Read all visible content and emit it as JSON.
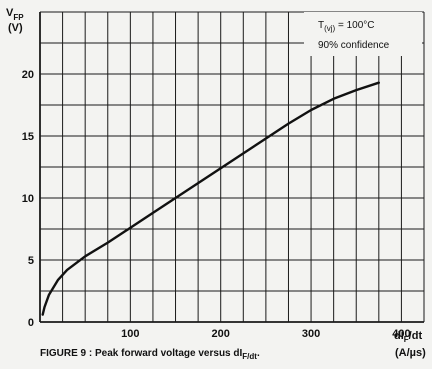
{
  "chart_data": {
    "type": "line",
    "y_label_main": "V",
    "y_label_sub": "FP",
    "y_unit": "(V)",
    "x_label_main": "dI",
    "x_label_sub": "F",
    "x_label_tail": "/dt",
    "x_unit": "(A/µs)",
    "annotation_main": "T",
    "annotation_sub": "(vj)",
    "annotation_tail": " = 100°C",
    "annotation_line2": "90% confidence",
    "caption_main": "FIGURE 9 : Peak forward voltage versus dI",
    "caption_sub": "F/dt",
    "caption_tail": ".",
    "xlim": [
      0,
      425
    ],
    "ylim": [
      0,
      25
    ],
    "x_ticks": [
      100,
      200,
      300,
      400
    ],
    "y_ticks": [
      0,
      5,
      10,
      15,
      20
    ],
    "grid": true,
    "series": [
      {
        "x": [
          3,
          5,
          10,
          20,
          30,
          50,
          75,
          100,
          125,
          150,
          175,
          200,
          225,
          250,
          275,
          300,
          325,
          350,
          375
        ],
        "y": [
          0.6,
          1.2,
          2.2,
          3.4,
          4.2,
          5.3,
          6.4,
          7.6,
          8.8,
          10.0,
          11.2,
          12.4,
          13.6,
          14.8,
          16.0,
          17.1,
          18.0,
          18.7,
          19.3
        ]
      }
    ]
  }
}
